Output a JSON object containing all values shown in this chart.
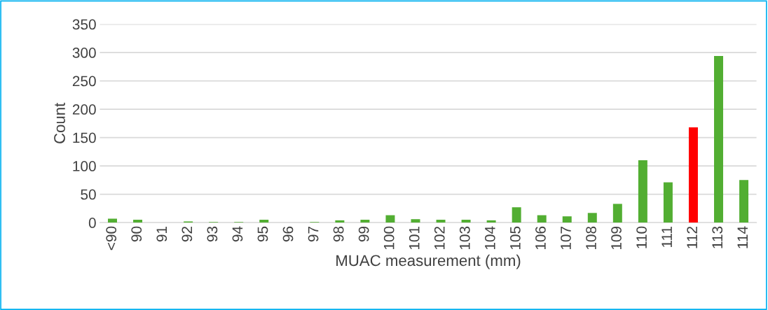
{
  "chart_data": {
    "type": "bar",
    "xlabel": "MUAC measurement (mm)",
    "ylabel": "Count",
    "categories": [
      "<90",
      "90",
      "91",
      "92",
      "93",
      "94",
      "95",
      "96",
      "97",
      "98",
      "99",
      "100",
      "101",
      "102",
      "103",
      "104",
      "105",
      "106",
      "107",
      "108",
      "109",
      "110",
      "111",
      "112",
      "113",
      "114"
    ],
    "values": [
      7,
      5,
      0,
      2,
      1,
      1,
      5,
      0,
      1,
      4,
      5,
      13,
      6,
      5,
      5,
      4,
      27,
      13,
      11,
      17,
      33,
      110,
      71,
      168,
      294,
      75
    ],
    "colors": [
      "#52ae32",
      "#52ae32",
      "#52ae32",
      "#52ae32",
      "#52ae32",
      "#52ae32",
      "#52ae32",
      "#52ae32",
      "#52ae32",
      "#52ae32",
      "#52ae32",
      "#52ae32",
      "#52ae32",
      "#52ae32",
      "#52ae32",
      "#52ae32",
      "#52ae32",
      "#52ae32",
      "#52ae32",
      "#52ae32",
      "#52ae32",
      "#52ae32",
      "#52ae32",
      "#ff0000",
      "#52ae32",
      "#52ae32"
    ],
    "ylim": [
      0,
      350
    ],
    "yticks": [
      0,
      50,
      100,
      150,
      200,
      250,
      300,
      350
    ],
    "grid": "y",
    "legend": false
  }
}
